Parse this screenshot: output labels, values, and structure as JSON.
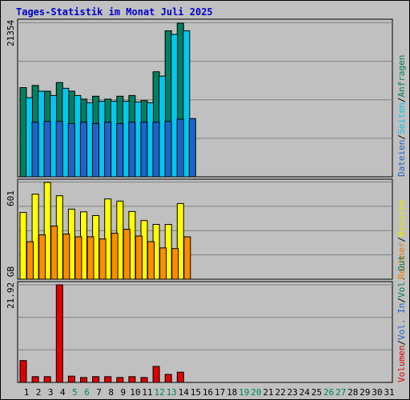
{
  "chart_data": [
    {
      "type": "bar",
      "title": "Tages-Statistik im Monat Juli 2025",
      "ytick_label": "21354",
      "ylim": [
        0,
        21354
      ],
      "right_legend": [
        {
          "label": "Dateien",
          "color": "#1e64c8"
        },
        {
          "label": "Seiten",
          "color": "#00c8f0"
        },
        {
          "label": "Anfragen",
          "color": "#008060"
        }
      ],
      "categories": [
        "1",
        "2",
        "3",
        "4",
        "5",
        "6",
        "7",
        "8",
        "9",
        "10",
        "11",
        "12",
        "13",
        "14",
        "15",
        "16",
        "17",
        "18",
        "19",
        "20",
        "21",
        "22",
        "23",
        "24",
        "25",
        "26",
        "27",
        "28",
        "29",
        "30",
        "31"
      ],
      "weekend_days": [
        "5",
        "6",
        "12",
        "13",
        "19",
        "20",
        "26",
        "27"
      ],
      "series": [
        {
          "name": "Anfragen",
          "color": "#008060",
          "values": [
            12400,
            12700,
            11900,
            13100,
            11900,
            10800,
            11200,
            10800,
            11200,
            11300,
            10600,
            14600,
            20300,
            21354,
            0,
            0,
            0,
            0,
            0,
            0,
            0,
            0,
            0,
            0,
            0,
            0,
            0,
            0,
            0,
            0,
            0
          ]
        },
        {
          "name": "Seiten",
          "color": "#00c8f0",
          "values": [
            11000,
            11900,
            11300,
            12300,
            11300,
            10300,
            10500,
            10500,
            10500,
            10400,
            10300,
            14000,
            19800,
            20300,
            0,
            0,
            0,
            0,
            0,
            0,
            0,
            0,
            0,
            0,
            0,
            0,
            0,
            0,
            0,
            0,
            0
          ]
        },
        {
          "name": "Dateien",
          "color": "#1e64c8",
          "values": [
            7600,
            7700,
            7700,
            7400,
            7600,
            7400,
            7600,
            7400,
            7600,
            7600,
            7600,
            7700,
            8000,
            8100,
            0,
            0,
            0,
            0,
            0,
            0,
            0,
            0,
            0,
            0,
            0,
            0,
            0,
            0,
            0,
            0,
            0
          ]
        }
      ]
    },
    {
      "type": "bar",
      "ytick_label": "601",
      "ylim": [
        0,
        601
      ],
      "right_legend": [
        {
          "label": "Rechner",
          "color": "#f07800"
        },
        {
          "label": "Besuche",
          "color": "#e6e600"
        }
      ],
      "series": [
        {
          "name": "Besuche",
          "color": "#ffff00",
          "values": [
            414,
            528,
            601,
            518,
            435,
            418,
            395,
            498,
            485,
            420,
            364,
            340,
            340,
            470,
            0,
            0,
            0,
            0,
            0,
            0,
            0,
            0,
            0,
            0,
            0,
            0,
            0,
            0,
            0,
            0,
            0
          ]
        },
        {
          "name": "Rechner",
          "color": "#ff8c00",
          "values": [
            233,
            275,
            330,
            280,
            263,
            263,
            250,
            285,
            310,
            268,
            233,
            194,
            190,
            263,
            0,
            0,
            0,
            0,
            0,
            0,
            0,
            0,
            0,
            0,
            0,
            0,
            0,
            0,
            0,
            0,
            0
          ]
        }
      ]
    },
    {
      "type": "bar",
      "ytick_label": "21.92 GB",
      "ylim": [
        0,
        21.92
      ],
      "right_legend": [
        {
          "label": "Volumen",
          "color": "#e00000"
        },
        {
          "label": "Vol. In",
          "color": "#1e64c8"
        },
        {
          "label": "Vol. Out",
          "color": "#008060"
        }
      ],
      "series": [
        {
          "name": "Volumen",
          "color": "#e00000",
          "values": [
            4.9,
            1.3,
            1.3,
            21.92,
            1.4,
            1.1,
            1.3,
            1.3,
            1.1,
            1.3,
            1.1,
            3.6,
            1.8,
            2.3,
            0,
            0,
            0,
            0,
            0,
            0,
            0,
            0,
            0,
            0,
            0,
            0,
            0,
            0,
            0,
            0,
            0
          ]
        }
      ]
    }
  ],
  "separator": "/"
}
